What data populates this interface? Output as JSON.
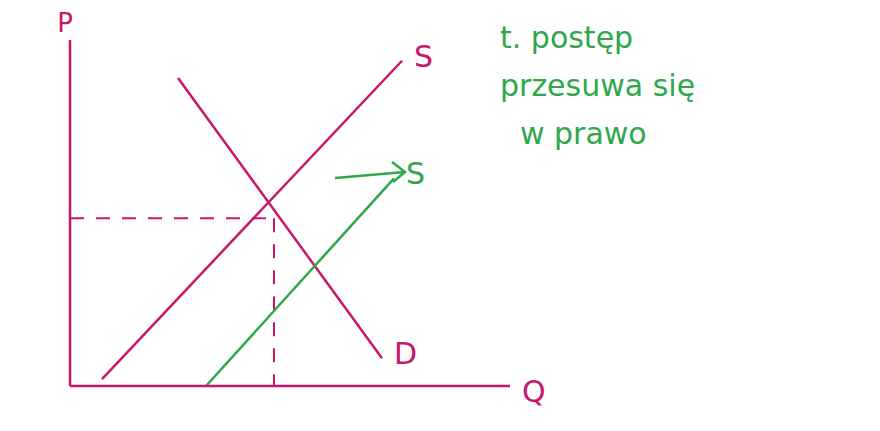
{
  "chart_data": {
    "type": "line",
    "x_label": "Q",
    "y_label": "P",
    "xlim": [
      0,
      11
    ],
    "ylim": [
      0,
      10
    ],
    "xticks": [],
    "yticks": [],
    "tick_labels": false,
    "grid": false,
    "series": [
      {
        "name": "D",
        "color": "#c8176a",
        "x": [
          2.7,
          7.8
        ],
        "values": [
          8.9,
          0.8
        ]
      },
      {
        "name": "S",
        "color": "#c8176a",
        "x": [
          0.8,
          8.3
        ],
        "values": [
          0.2,
          9.4
        ]
      },
      {
        "name": "S",
        "color": "#2ea84a",
        "x": [
          3.4,
          8.1
        ],
        "values": [
          0,
          6
        ]
      }
    ],
    "equilibrium": {
      "x": 5.1,
      "y": 4.85
    },
    "annotations": [
      {
        "text": "t. postęp",
        "color": "#2ea84a"
      },
      {
        "text": "przesuwa się",
        "color": "#2ea84a"
      },
      {
        "text": "w prawo",
        "color": "#2ea84a"
      }
    ]
  }
}
